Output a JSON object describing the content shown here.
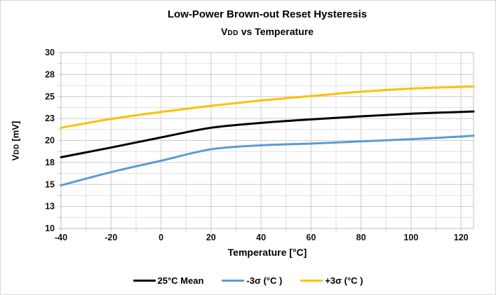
{
  "chart_data": {
    "type": "line",
    "title": "Low-Power Brown-out Reset Hysteresis",
    "subtitle_parts": {
      "v": "V",
      "dd": "DD",
      "rest": " vs Temperature"
    },
    "xlabel": "Temperature [°C]",
    "ylabel_parts": {
      "v": "V",
      "dd": "DD",
      "rest": " [mV]"
    },
    "xlim": [
      -40,
      125
    ],
    "ylim": [
      10,
      30
    ],
    "x_ticks": [
      -40,
      -20,
      0,
      20,
      40,
      60,
      80,
      100,
      120
    ],
    "x_tick_labels": [
      "-40",
      "-20",
      "0",
      "20",
      "40",
      "60",
      "80",
      "100",
      "120"
    ],
    "y_ticks": [
      10,
      12.5,
      15,
      17.5,
      20,
      22.5,
      25,
      27.5,
      30
    ],
    "y_tick_labels": [
      "10",
      "13",
      "15",
      "18",
      "20",
      "23",
      "25",
      "28",
      "30"
    ],
    "x_minor_step": 10,
    "y_minor_step": 1.25,
    "grid": true,
    "legend_position": "bottom",
    "x": [
      -40,
      -20,
      0,
      20,
      40,
      60,
      80,
      100,
      120,
      125
    ],
    "series": [
      {
        "name": "25°C Mean",
        "color": "#000000",
        "values": [
          18.1,
          19.2,
          20.35,
          21.45,
          22.0,
          22.4,
          22.75,
          23.05,
          23.25,
          23.3
        ]
      },
      {
        "name": "-3σ (°C )",
        "color": "#5b9bd5",
        "values": [
          14.9,
          16.4,
          17.7,
          19.0,
          19.45,
          19.65,
          19.9,
          20.15,
          20.45,
          20.55
        ]
      },
      {
        "name": "+3σ (°C )",
        "color": "#ffc000",
        "values": [
          21.45,
          22.45,
          23.25,
          23.95,
          24.55,
          25.05,
          25.55,
          25.9,
          26.1,
          26.15
        ]
      }
    ],
    "colors": {
      "grid_minor": "#e2e2e2",
      "grid_major": "#d0d0d0",
      "axis_border": "#bfbfbf",
      "tick": "#bfbfbf",
      "tick_text": "#111111"
    }
  }
}
